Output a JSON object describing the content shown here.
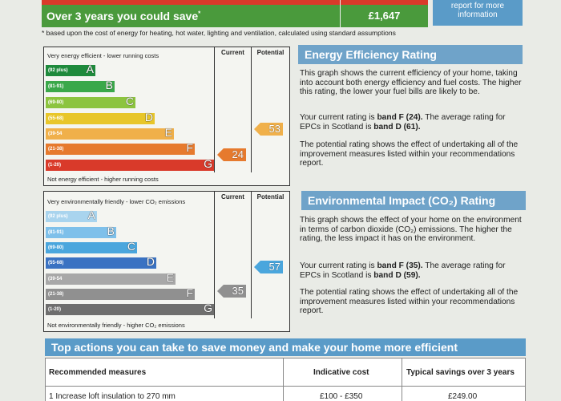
{
  "savings": {
    "label": "Over 3 years you could save",
    "value": "£1,647",
    "info_button": "report for more information",
    "footnote": "based upon the cost of energy for heating, hot water, lighting and ventilation, calculated using standard assumptions"
  },
  "energy_chart": {
    "col_current": "Current",
    "col_potential": "Potential",
    "top_note": "Very energy efficient - lower running costs",
    "bottom_note": "Not energy efficient - higher running costs",
    "bands": [
      {
        "range": "(92 plus)",
        "letter": "A",
        "color": "#1e8a3c"
      },
      {
        "range": "(81-91)",
        "letter": "B",
        "color": "#3aa84a"
      },
      {
        "range": "(69-80)",
        "letter": "C",
        "color": "#8cc43f"
      },
      {
        "range": "(55-68)",
        "letter": "D",
        "color": "#e8c62a"
      },
      {
        "range": "(39-54",
        "letter": "E",
        "color": "#f0b04a"
      },
      {
        "range": "(21-38)",
        "letter": "F",
        "color": "#e67a2e"
      },
      {
        "range": "(1-20)",
        "letter": "G",
        "color": "#d93a2a"
      }
    ],
    "current": "24",
    "potential": "53",
    "current_color": "#e67a2e",
    "potential_color": "#f0b04a"
  },
  "environment_chart": {
    "col_current": "Current",
    "col_potential": "Potential",
    "top_note": "Very environmentally friendly - lower CO₂ emissions",
    "bottom_note": "Not environmentally friendly - higher CO₂ emissions",
    "bands": [
      {
        "range": "(92 plus)",
        "letter": "A",
        "color": "#a9d4ee"
      },
      {
        "range": "(81-91)",
        "letter": "B",
        "color": "#7ec0ea"
      },
      {
        "range": "(69-80)",
        "letter": "C",
        "color": "#4aa6dd"
      },
      {
        "range": "(55-68)",
        "letter": "D",
        "color": "#3a72c2"
      },
      {
        "range": "(39-54",
        "letter": "E",
        "color": "#a8a8a8"
      },
      {
        "range": "(21-38)",
        "letter": "F",
        "color": "#909090"
      },
      {
        "range": "(1-20)",
        "letter": "G",
        "color": "#6e6e6e"
      }
    ],
    "current": "35",
    "potential": "57",
    "current_color": "#909090",
    "potential_color": "#4aa6dd"
  },
  "energy_panel": {
    "title": "Energy Efficiency Rating",
    "para1": "This graph shows the current efficiency of your home, taking into account both energy efficiency and fuel costs. The higher this rating, the lower your fuel bills are likely to be.",
    "para2_prefix": "Your current rating is ",
    "para2_bold1": "band F (24).",
    "para2_mid": " The average rating for EPCs in Scotland is ",
    "para2_bold2": "band D (61).",
    "para3": "The potential rating shows the effect of undertaking all of the improvement measures listed within your recommendations report."
  },
  "env_panel": {
    "title": "Environmental Impact (CO₂) Rating",
    "para1": "This graph shows the effect of your home on the environment in terms of carbon dioxide (CO₂) emissions. The higher the rating, the less impact it has on the environment.",
    "para2_prefix": "Your current rating is ",
    "para2_bold1": "band F (35).",
    "para2_mid": " The average rating for EPCs in Scotland is ",
    "para2_bold2": "band D (59).",
    "para3": "The potential rating shows the effect of undertaking all of the improvement measures listed within your recommendations report."
  },
  "top_actions": {
    "title": "Top actions you can take to save money and make your home more efficient",
    "headers": [
      "Recommended measures",
      "Indicative cost",
      "Typical savings over 3 years"
    ],
    "rows": [
      [
        "1 Increase loft insulation to 270 mm",
        "£100 - £350",
        "£249.00"
      ]
    ]
  }
}
